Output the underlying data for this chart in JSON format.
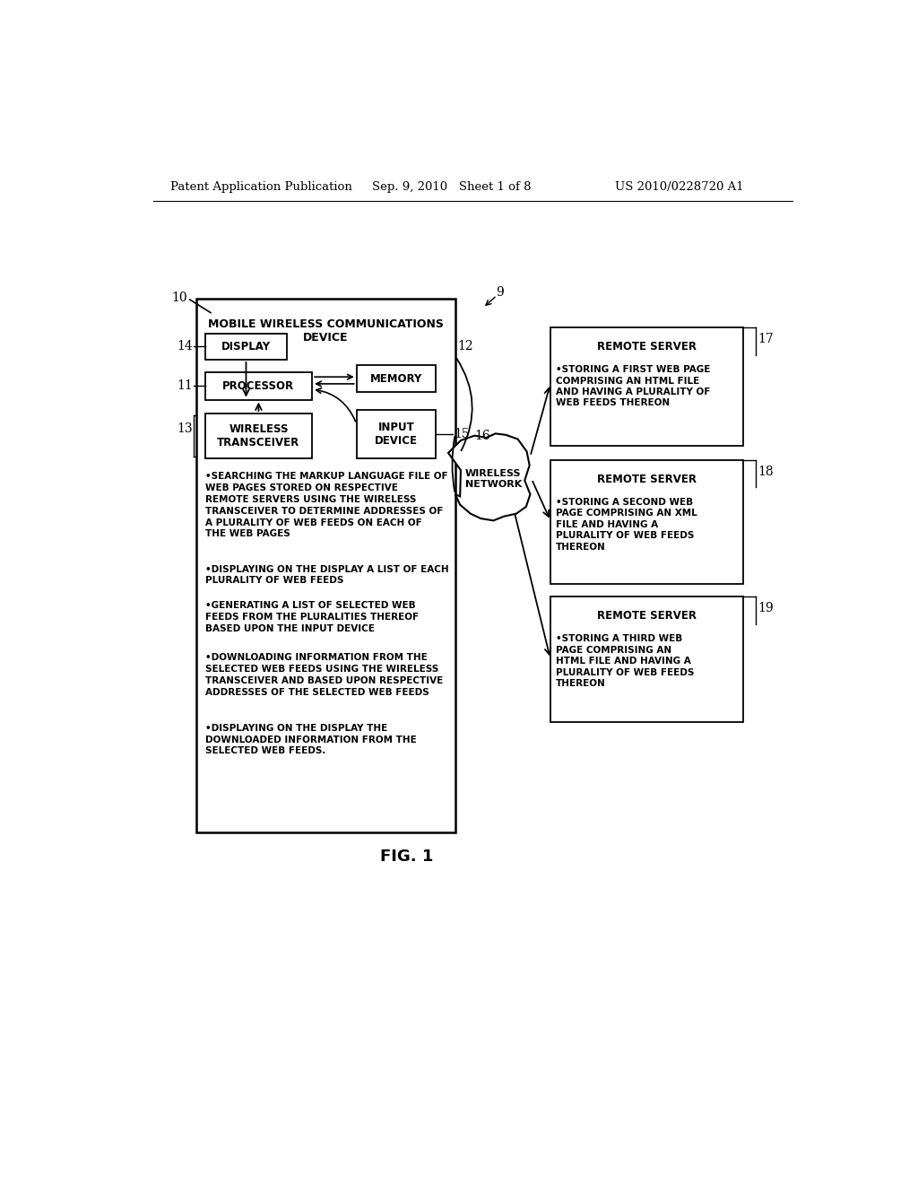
{
  "bg_color": "#ffffff",
  "header_left": "Patent Application Publication",
  "header_mid": "Sep. 9, 2010   Sheet 1 of 8",
  "header_right": "US 2010/0228720 A1",
  "fig_label": "FIG. 1",
  "label_10": "10",
  "label_9": "9",
  "label_14": "14",
  "label_11": "11",
  "label_12": "12",
  "label_13": "13",
  "label_15": "15",
  "label_16": "16",
  "label_17": "17",
  "label_18": "18",
  "label_19": "19",
  "main_box_title": "MOBILE WIRELESS COMMUNICATIONS\nDEVICE",
  "display_label": "DISPLAY",
  "processor_label": "PROCESSOR",
  "memory_label": "MEMORY",
  "wireless_label": "WIRELESS\nTRANSCEIVER",
  "input_label": "INPUT\nDEVICE",
  "bullet1": "•SEARCHING THE MARKUP LANGUAGE FILE OF\nWEB PAGES STORED ON RESPECTIVE\nREMOTE SERVERS USING THE WIRELESS\nTRANSCEIVER TO DETERMINE ADDRESSES OF\nA PLURALITY OF WEB FEEDS ON EACH OF\nTHE WEB PAGES",
  "bullet2": "•DISPLAYING ON THE DISPLAY A LIST OF EACH\nPLURALITY OF WEB FEEDS",
  "bullet3": "•GENERATING A LIST OF SELECTED WEB\nFEEDS FROM THE PLURALITIES THEREOF\nBASED UPON THE INPUT DEVICE",
  "bullet4": "•DOWNLOADING INFORMATION FROM THE\nSELECTED WEB FEEDS USING THE WIRELESS\nTRANSCEIVER AND BASED UPON RESPECTIVE\nADDRESSES OF THE SELECTED WEB FEEDS",
  "bullet5": "•DISPLAYING ON THE DISPLAY THE\nDOWNLOADED INFORMATION FROM THE\nSELECTED WEB FEEDS.",
  "remote17_title": "REMOTE SERVER",
  "remote17_text": "•STORING A FIRST WEB PAGE\nCOMPRISING AN HTML FILE\nAND HAVING A PLURALITY OF\nWEB FEEDS THEREON",
  "remote18_title": "REMOTE SERVER",
  "remote18_text": "•STORING A SECOND WEB\nPAGE COMPRISING AN XML\nFILE AND HAVING A\nPLURALITY OF WEB FEEDS\nTHEREON",
  "remote19_title": "REMOTE SERVER",
  "remote19_text": "•STORING A THIRD WEB\nPAGE COMPRISING AN\nHTML FILE AND HAVING A\nPLURALITY OF WEB FEEDS\nTHEREON",
  "wireless_network_label": "WIRELESS\nNETWORK"
}
